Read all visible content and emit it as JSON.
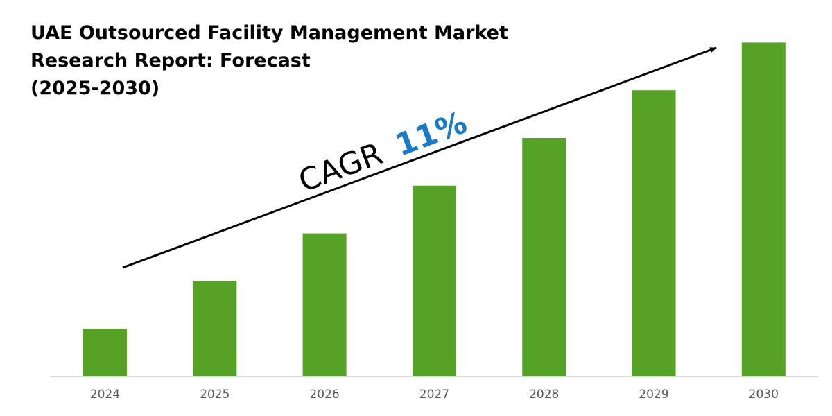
{
  "title_lines": [
    "UAE Outsourced Facility Management Market",
    "Research Report: Forecast",
    "(2025-2030)"
  ],
  "chart_data": {
    "type": "bar",
    "title": "UAE Outsourced Facility Management Market Research Report: Forecast (2025-2030)",
    "categories": [
      "2024",
      "2025",
      "2026",
      "2027",
      "2028",
      "2029",
      "2030"
    ],
    "values": [
      1,
      2,
      3,
      4,
      5,
      6,
      7
    ],
    "values_note": "relative heights; no y-axis values printed",
    "xlabel": "",
    "ylabel": "",
    "grid": false,
    "legend": "none",
    "annotation": {
      "label": "CAGR",
      "value": "11%",
      "arrow": "upward trend arrow"
    },
    "colors": {
      "bar": "#56a226",
      "cagr_value": "#1a7ac4",
      "axis": "#d9d9d9",
      "tick_label": "#595959"
    }
  }
}
